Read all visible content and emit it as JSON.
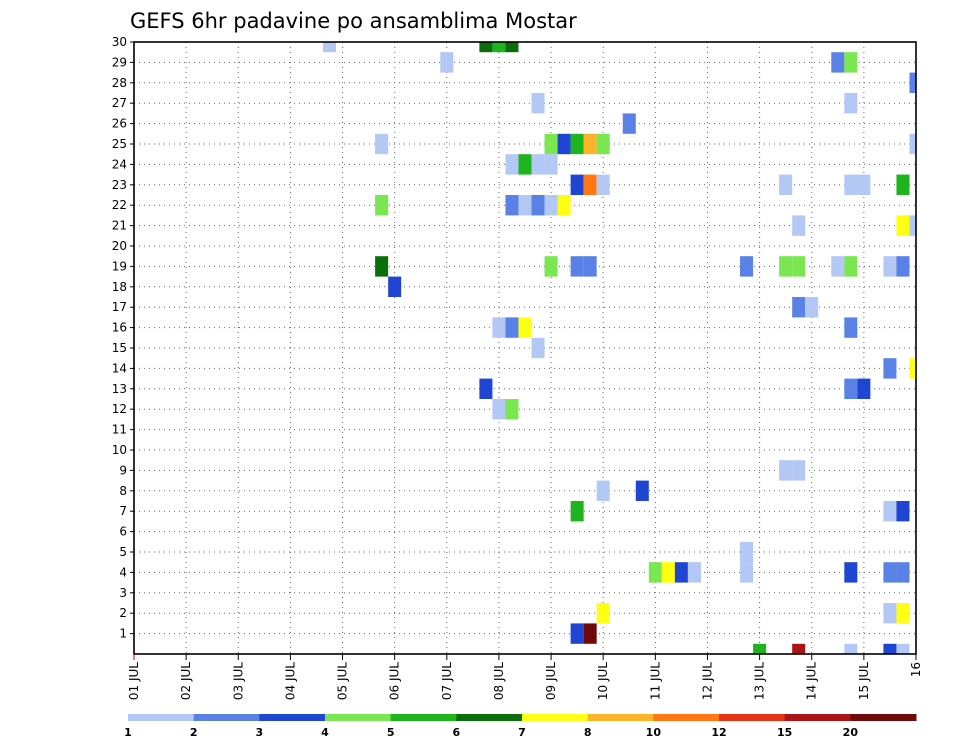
{
  "chart_data": {
    "type": "heatmap",
    "title": "GEFS 6hr padavine po ansamblima Mostar",
    "xlabel": "",
    "ylabel": "",
    "x_tick_labels": [
      "01 JUL",
      "02 JUL",
      "03 JUL",
      "04 JUL",
      "05 JUL",
      "06 JUL",
      "07 JUL",
      "08 JUL",
      "09 JUL",
      "10 JUL",
      "11 JUL",
      "12 JUL",
      "13 JUL",
      "14 JUL",
      "15 JUL",
      "16"
    ],
    "y_tick_labels": [
      "1",
      "2",
      "3",
      "4",
      "5",
      "6",
      "7",
      "8",
      "9",
      "10",
      "11",
      "12",
      "13",
      "14",
      "15",
      "16",
      "17",
      "18",
      "19",
      "20",
      "21",
      "22",
      "23",
      "24",
      "25",
      "26",
      "27",
      "28",
      "29",
      "30"
    ],
    "xlim_days": [
      1,
      16
    ],
    "ylim_members": [
      0,
      30
    ],
    "grid": true,
    "colorbar": {
      "placement": "bottom",
      "labels": [
        "1",
        "2",
        "3",
        "4",
        "5",
        "6",
        "7",
        "8",
        "10",
        "12",
        "15",
        "20"
      ],
      "colors": [
        "#b4c8f5",
        "#5a82e6",
        "#1e46d2",
        "#7ae650",
        "#1eb41e",
        "#0a6e0a",
        "#ffff14",
        "#ffb428",
        "#ff7814",
        "#e63214",
        "#aa1414",
        "#6e0a0a"
      ]
    },
    "cells": [
      {
        "day": 4.75,
        "member": 30,
        "level": 1
      },
      {
        "day": 7.75,
        "member": 30,
        "level": 6
      },
      {
        "day": 8.0,
        "member": 30,
        "level": 5
      },
      {
        "day": 8.25,
        "member": 30,
        "level": 6
      },
      {
        "day": 7.0,
        "member": 29,
        "level": 1
      },
      {
        "day": 14.5,
        "member": 29,
        "level": 2
      },
      {
        "day": 14.75,
        "member": 29,
        "level": 4
      },
      {
        "day": 16.0,
        "member": 28,
        "level": 2
      },
      {
        "day": 8.75,
        "member": 27,
        "level": 1
      },
      {
        "day": 14.75,
        "member": 27,
        "level": 1
      },
      {
        "day": 10.5,
        "member": 26,
        "level": 2
      },
      {
        "day": 5.75,
        "member": 25,
        "level": 1
      },
      {
        "day": 9.0,
        "member": 25,
        "level": 4
      },
      {
        "day": 9.25,
        "member": 25,
        "level": 3
      },
      {
        "day": 9.5,
        "member": 25,
        "level": 5
      },
      {
        "day": 9.75,
        "member": 25,
        "level": 8
      },
      {
        "day": 10.0,
        "member": 25,
        "level": 4
      },
      {
        "day": 16.0,
        "member": 25,
        "level": 1
      },
      {
        "day": 8.25,
        "member": 24,
        "level": 1
      },
      {
        "day": 8.5,
        "member": 24,
        "level": 5
      },
      {
        "day": 8.75,
        "member": 24,
        "level": 1
      },
      {
        "day": 9.0,
        "member": 24,
        "level": 1
      },
      {
        "day": 9.5,
        "member": 23,
        "level": 3
      },
      {
        "day": 9.75,
        "member": 23,
        "level": 9
      },
      {
        "day": 10.0,
        "member": 23,
        "level": 1
      },
      {
        "day": 13.5,
        "member": 23,
        "level": 1
      },
      {
        "day": 14.75,
        "member": 23,
        "level": 1
      },
      {
        "day": 15.0,
        "member": 23,
        "level": 1
      },
      {
        "day": 15.75,
        "member": 23,
        "level": 5
      },
      {
        "day": 5.75,
        "member": 22,
        "level": 4
      },
      {
        "day": 8.25,
        "member": 22,
        "level": 2
      },
      {
        "day": 8.5,
        "member": 22,
        "level": 1
      },
      {
        "day": 8.75,
        "member": 22,
        "level": 2
      },
      {
        "day": 9.0,
        "member": 22,
        "level": 1
      },
      {
        "day": 9.25,
        "member": 22,
        "level": 7
      },
      {
        "day": 13.75,
        "member": 21,
        "level": 1
      },
      {
        "day": 15.75,
        "member": 21,
        "level": 7
      },
      {
        "day": 16.0,
        "member": 21,
        "level": 1
      },
      {
        "day": 5.75,
        "member": 19,
        "level": 6
      },
      {
        "day": 9.0,
        "member": 19,
        "level": 4
      },
      {
        "day": 9.5,
        "member": 19,
        "level": 2
      },
      {
        "day": 9.75,
        "member": 19,
        "level": 2
      },
      {
        "day": 12.75,
        "member": 19,
        "level": 2
      },
      {
        "day": 13.5,
        "member": 19,
        "level": 4
      },
      {
        "day": 13.75,
        "member": 19,
        "level": 4
      },
      {
        "day": 14.5,
        "member": 19,
        "level": 1
      },
      {
        "day": 14.75,
        "member": 19,
        "level": 4
      },
      {
        "day": 15.5,
        "member": 19,
        "level": 1
      },
      {
        "day": 15.75,
        "member": 19,
        "level": 2
      },
      {
        "day": 6.0,
        "member": 18,
        "level": 3
      },
      {
        "day": 13.75,
        "member": 17,
        "level": 2
      },
      {
        "day": 14.0,
        "member": 17,
        "level": 1
      },
      {
        "day": 8.0,
        "member": 16,
        "level": 1
      },
      {
        "day": 8.25,
        "member": 16,
        "level": 2
      },
      {
        "day": 8.5,
        "member": 16,
        "level": 7
      },
      {
        "day": 14.75,
        "member": 16,
        "level": 2
      },
      {
        "day": 8.75,
        "member": 15,
        "level": 1
      },
      {
        "day": 15.5,
        "member": 14,
        "level": 2
      },
      {
        "day": 16.0,
        "member": 14,
        "level": 7
      },
      {
        "day": 7.75,
        "member": 13,
        "level": 3
      },
      {
        "day": 14.75,
        "member": 13,
        "level": 2
      },
      {
        "day": 15.0,
        "member": 13,
        "level": 3
      },
      {
        "day": 8.0,
        "member": 12,
        "level": 1
      },
      {
        "day": 8.25,
        "member": 12,
        "level": 4
      },
      {
        "day": 13.5,
        "member": 9,
        "level": 1
      },
      {
        "day": 13.75,
        "member": 9,
        "level": 1
      },
      {
        "day": 10.0,
        "member": 8,
        "level": 1
      },
      {
        "day": 10.75,
        "member": 8,
        "level": 3
      },
      {
        "day": 9.5,
        "member": 7,
        "level": 5
      },
      {
        "day": 15.5,
        "member": 7,
        "level": 1
      },
      {
        "day": 15.75,
        "member": 7,
        "level": 3
      },
      {
        "day": 12.75,
        "member": 5,
        "level": 1
      },
      {
        "day": 11.0,
        "member": 4,
        "level": 4
      },
      {
        "day": 11.25,
        "member": 4,
        "level": 7
      },
      {
        "day": 11.5,
        "member": 4,
        "level": 3
      },
      {
        "day": 11.75,
        "member": 4,
        "level": 1
      },
      {
        "day": 12.75,
        "member": 4,
        "level": 1
      },
      {
        "day": 14.75,
        "member": 4,
        "level": 3
      },
      {
        "day": 15.5,
        "member": 4,
        "level": 2
      },
      {
        "day": 15.75,
        "member": 4,
        "level": 2
      },
      {
        "day": 10.0,
        "member": 2,
        "level": 7
      },
      {
        "day": 15.5,
        "member": 2,
        "level": 1
      },
      {
        "day": 15.75,
        "member": 2,
        "level": 7
      },
      {
        "day": 9.5,
        "member": 1,
        "level": 3
      },
      {
        "day": 9.75,
        "member": 1,
        "level": 12
      },
      {
        "day": 13.0,
        "member": 0,
        "level": 5
      },
      {
        "day": 13.75,
        "member": 0,
        "level": 11
      },
      {
        "day": 14.75,
        "member": 0,
        "level": 1
      },
      {
        "day": 15.5,
        "member": 0,
        "level": 3
      },
      {
        "day": 15.75,
        "member": 0,
        "level": 1
      }
    ]
  }
}
